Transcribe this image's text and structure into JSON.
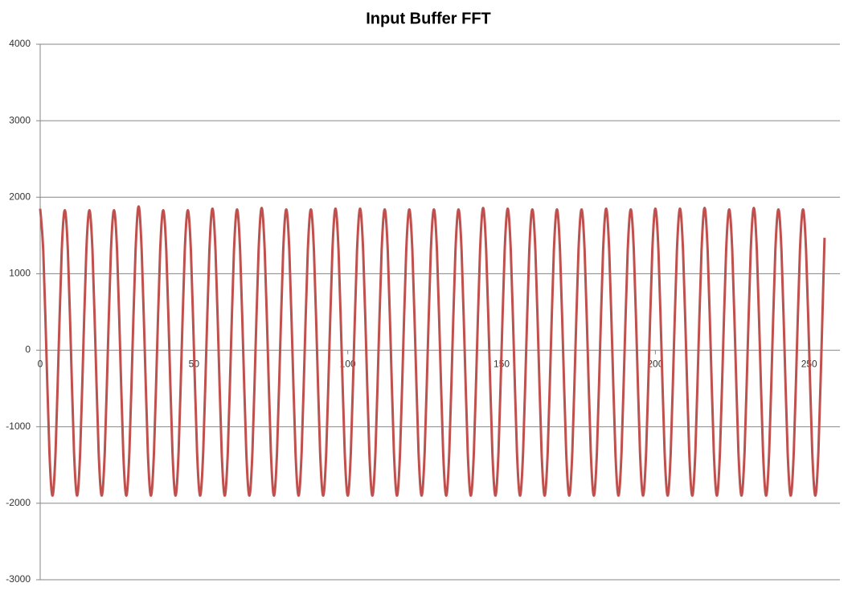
{
  "chart_data": {
    "type": "line",
    "title": "Input Buffer FFT",
    "x": [
      0,
      1,
      2,
      3,
      4,
      5,
      6,
      7,
      8,
      9,
      10,
      11,
      12,
      13,
      14,
      15,
      16,
      17,
      18,
      19,
      20,
      21,
      22,
      23,
      24,
      25,
      26,
      27,
      28,
      29,
      30,
      31,
      32,
      33,
      34,
      35,
      36,
      37,
      38,
      39,
      40,
      41,
      42,
      43,
      44,
      45,
      46,
      47,
      48,
      49,
      50,
      51,
      52,
      53,
      54,
      55,
      56,
      57,
      58,
      59,
      60,
      61,
      62,
      63,
      64,
      65,
      66,
      67,
      68,
      69,
      70,
      71,
      72,
      73,
      74,
      75,
      76,
      77,
      78,
      79,
      80,
      81,
      82,
      83,
      84,
      85,
      86,
      87,
      88,
      89,
      90,
      91,
      92,
      93,
      94,
      95,
      96,
      97,
      98,
      99,
      100,
      101,
      102,
      103,
      104,
      105,
      106,
      107,
      108,
      109,
      110,
      111,
      112,
      113,
      114,
      115,
      116,
      117,
      118,
      119,
      120,
      121,
      122,
      123,
      124,
      125,
      126,
      127,
      128,
      129,
      130,
      131,
      132,
      133,
      134,
      135,
      136,
      137,
      138,
      139,
      140,
      141,
      142,
      143,
      144,
      145,
      146,
      147,
      148,
      149,
      150,
      151,
      152,
      153,
      154,
      155,
      156,
      157,
      158,
      159,
      160,
      161,
      162,
      163,
      164,
      165,
      166,
      167,
      168,
      169,
      170,
      171,
      172,
      173,
      174,
      175,
      176,
      177,
      178,
      179,
      180,
      181,
      182,
      183,
      184,
      185,
      186,
      187,
      188,
      189,
      190,
      191,
      192,
      193,
      194,
      195,
      196,
      197,
      198,
      199,
      200,
      201,
      202,
      203,
      204,
      205,
      206,
      207,
      208,
      209,
      210,
      211,
      212,
      213,
      214,
      215,
      216,
      217,
      218,
      219,
      220,
      221,
      222,
      223,
      224,
      225,
      226,
      227,
      228,
      229,
      230,
      231,
      232,
      233,
      234,
      235,
      236,
      237,
      238,
      239,
      240,
      241,
      242,
      243,
      244,
      245,
      246,
      247,
      248,
      249,
      250,
      251,
      252,
      253,
      254,
      255
    ],
    "series": [
      {
        "color": "#c0504d",
        "values": [
          1850,
          1300,
          0,
          -1330,
          -1900,
          -1330,
          0,
          1300,
          1830,
          1300,
          0,
          -1330,
          -1900,
          -1330,
          0,
          1300,
          1830,
          1300,
          0,
          -1330,
          -1900,
          -1330,
          0,
          1300,
          1830,
          1300,
          0,
          -1330,
          -1900,
          -1330,
          0,
          1300,
          1880,
          1300,
          0,
          -1330,
          -1900,
          -1330,
          0,
          1300,
          1830,
          1300,
          0,
          -1330,
          -1900,
          -1330,
          0,
          1300,
          1830,
          1300,
          0,
          -1330,
          -1900,
          -1330,
          0,
          1300,
          1850,
          1300,
          0,
          -1330,
          -1900,
          -1330,
          0,
          1300,
          1840,
          1300,
          0,
          -1330,
          -1900,
          -1330,
          0,
          1300,
          1860,
          1300,
          0,
          -1330,
          -1900,
          -1330,
          0,
          1300,
          1840,
          1300,
          0,
          -1330,
          -1900,
          -1330,
          0,
          1300,
          1840,
          1300,
          0,
          -1330,
          -1900,
          -1330,
          0,
          1300,
          1850,
          1300,
          0,
          -1330,
          -1900,
          -1330,
          0,
          1300,
          1850,
          1300,
          0,
          -1330,
          -1900,
          -1330,
          0,
          1300,
          1840,
          1300,
          0,
          -1330,
          -1900,
          -1330,
          0,
          1300,
          1840,
          1300,
          0,
          -1330,
          -1900,
          -1330,
          0,
          1300,
          1840,
          1300,
          0,
          -1330,
          -1900,
          -1330,
          0,
          1300,
          1840,
          1300,
          0,
          -1330,
          -1900,
          -1330,
          0,
          1300,
          1860,
          1300,
          0,
          -1330,
          -1900,
          -1330,
          0,
          1300,
          1850,
          1300,
          0,
          -1330,
          -1900,
          -1330,
          0,
          1300,
          1840,
          1300,
          0,
          -1330,
          -1900,
          -1330,
          0,
          1300,
          1840,
          1300,
          0,
          -1330,
          -1900,
          -1330,
          0,
          1300,
          1840,
          1300,
          0,
          -1330,
          -1900,
          -1330,
          0,
          1300,
          1850,
          1300,
          0,
          -1330,
          -1900,
          -1330,
          0,
          1300,
          1840,
          1300,
          0,
          -1330,
          -1900,
          -1330,
          0,
          1300,
          1850,
          1300,
          0,
          -1330,
          -1900,
          -1330,
          0,
          1300,
          1850,
          1300,
          0,
          -1330,
          -1900,
          -1330,
          0,
          1300,
          1860,
          1300,
          0,
          -1330,
          -1900,
          -1330,
          0,
          1300,
          1840,
          1300,
          0,
          -1330,
          -1900,
          -1330,
          0,
          1300,
          1860,
          1300,
          0,
          -1330,
          -1900,
          -1330,
          0,
          1300,
          1840,
          1300,
          0,
          -1330,
          -1900,
          -1330,
          0,
          1300,
          1840,
          1300,
          0,
          -1330,
          -1900,
          -1330,
          0,
          1470
        ]
      }
    ],
    "xlim": [
      0,
      260
    ],
    "xticks": [
      0,
      50,
      100,
      150,
      200,
      250
    ],
    "ylim": [
      -3000,
      4000
    ],
    "yticks": [
      -3000,
      -2000,
      -1000,
      0,
      1000,
      2000,
      3000,
      4000
    ],
    "grid": true
  }
}
